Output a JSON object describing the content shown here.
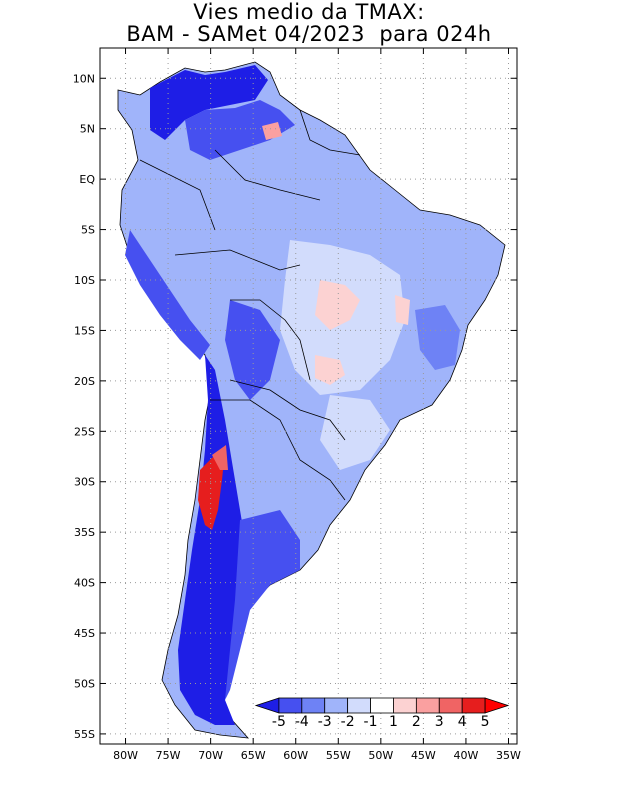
{
  "title": {
    "line1": "Vies medio da TMAX:",
    "line2": "BAM - SAMet 04/2023  para 024h"
  },
  "axes": {
    "lon_ticks": [
      "80W",
      "75W",
      "70W",
      "65W",
      "60W",
      "55W",
      "50W",
      "45W",
      "40W",
      "35W"
    ],
    "lat_ticks": [
      "10N",
      "5N",
      "EQ",
      "5S",
      "10S",
      "15S",
      "20S",
      "25S",
      "30S",
      "35S",
      "40S",
      "45S",
      "50S",
      "55S"
    ],
    "lon_range": [
      -83,
      -34
    ],
    "lat_range": [
      13,
      -56
    ],
    "grid": true
  },
  "colorbar": {
    "labels": [
      "-5",
      "-4",
      "-3",
      "-2",
      "-1",
      "1",
      "2",
      "3",
      "4",
      "5"
    ],
    "colors": [
      "#1e1ee6",
      "#4650f0",
      "#6e82f5",
      "#a0b4fa",
      "#d2dcfc",
      "#ffffff",
      "#fcd2d2",
      "#faa0a0",
      "#f06464",
      "#e61e1e",
      "#ff0000"
    ]
  },
  "map": {
    "base_color": "#a0b4fa",
    "country_line_color": "#000000"
  }
}
